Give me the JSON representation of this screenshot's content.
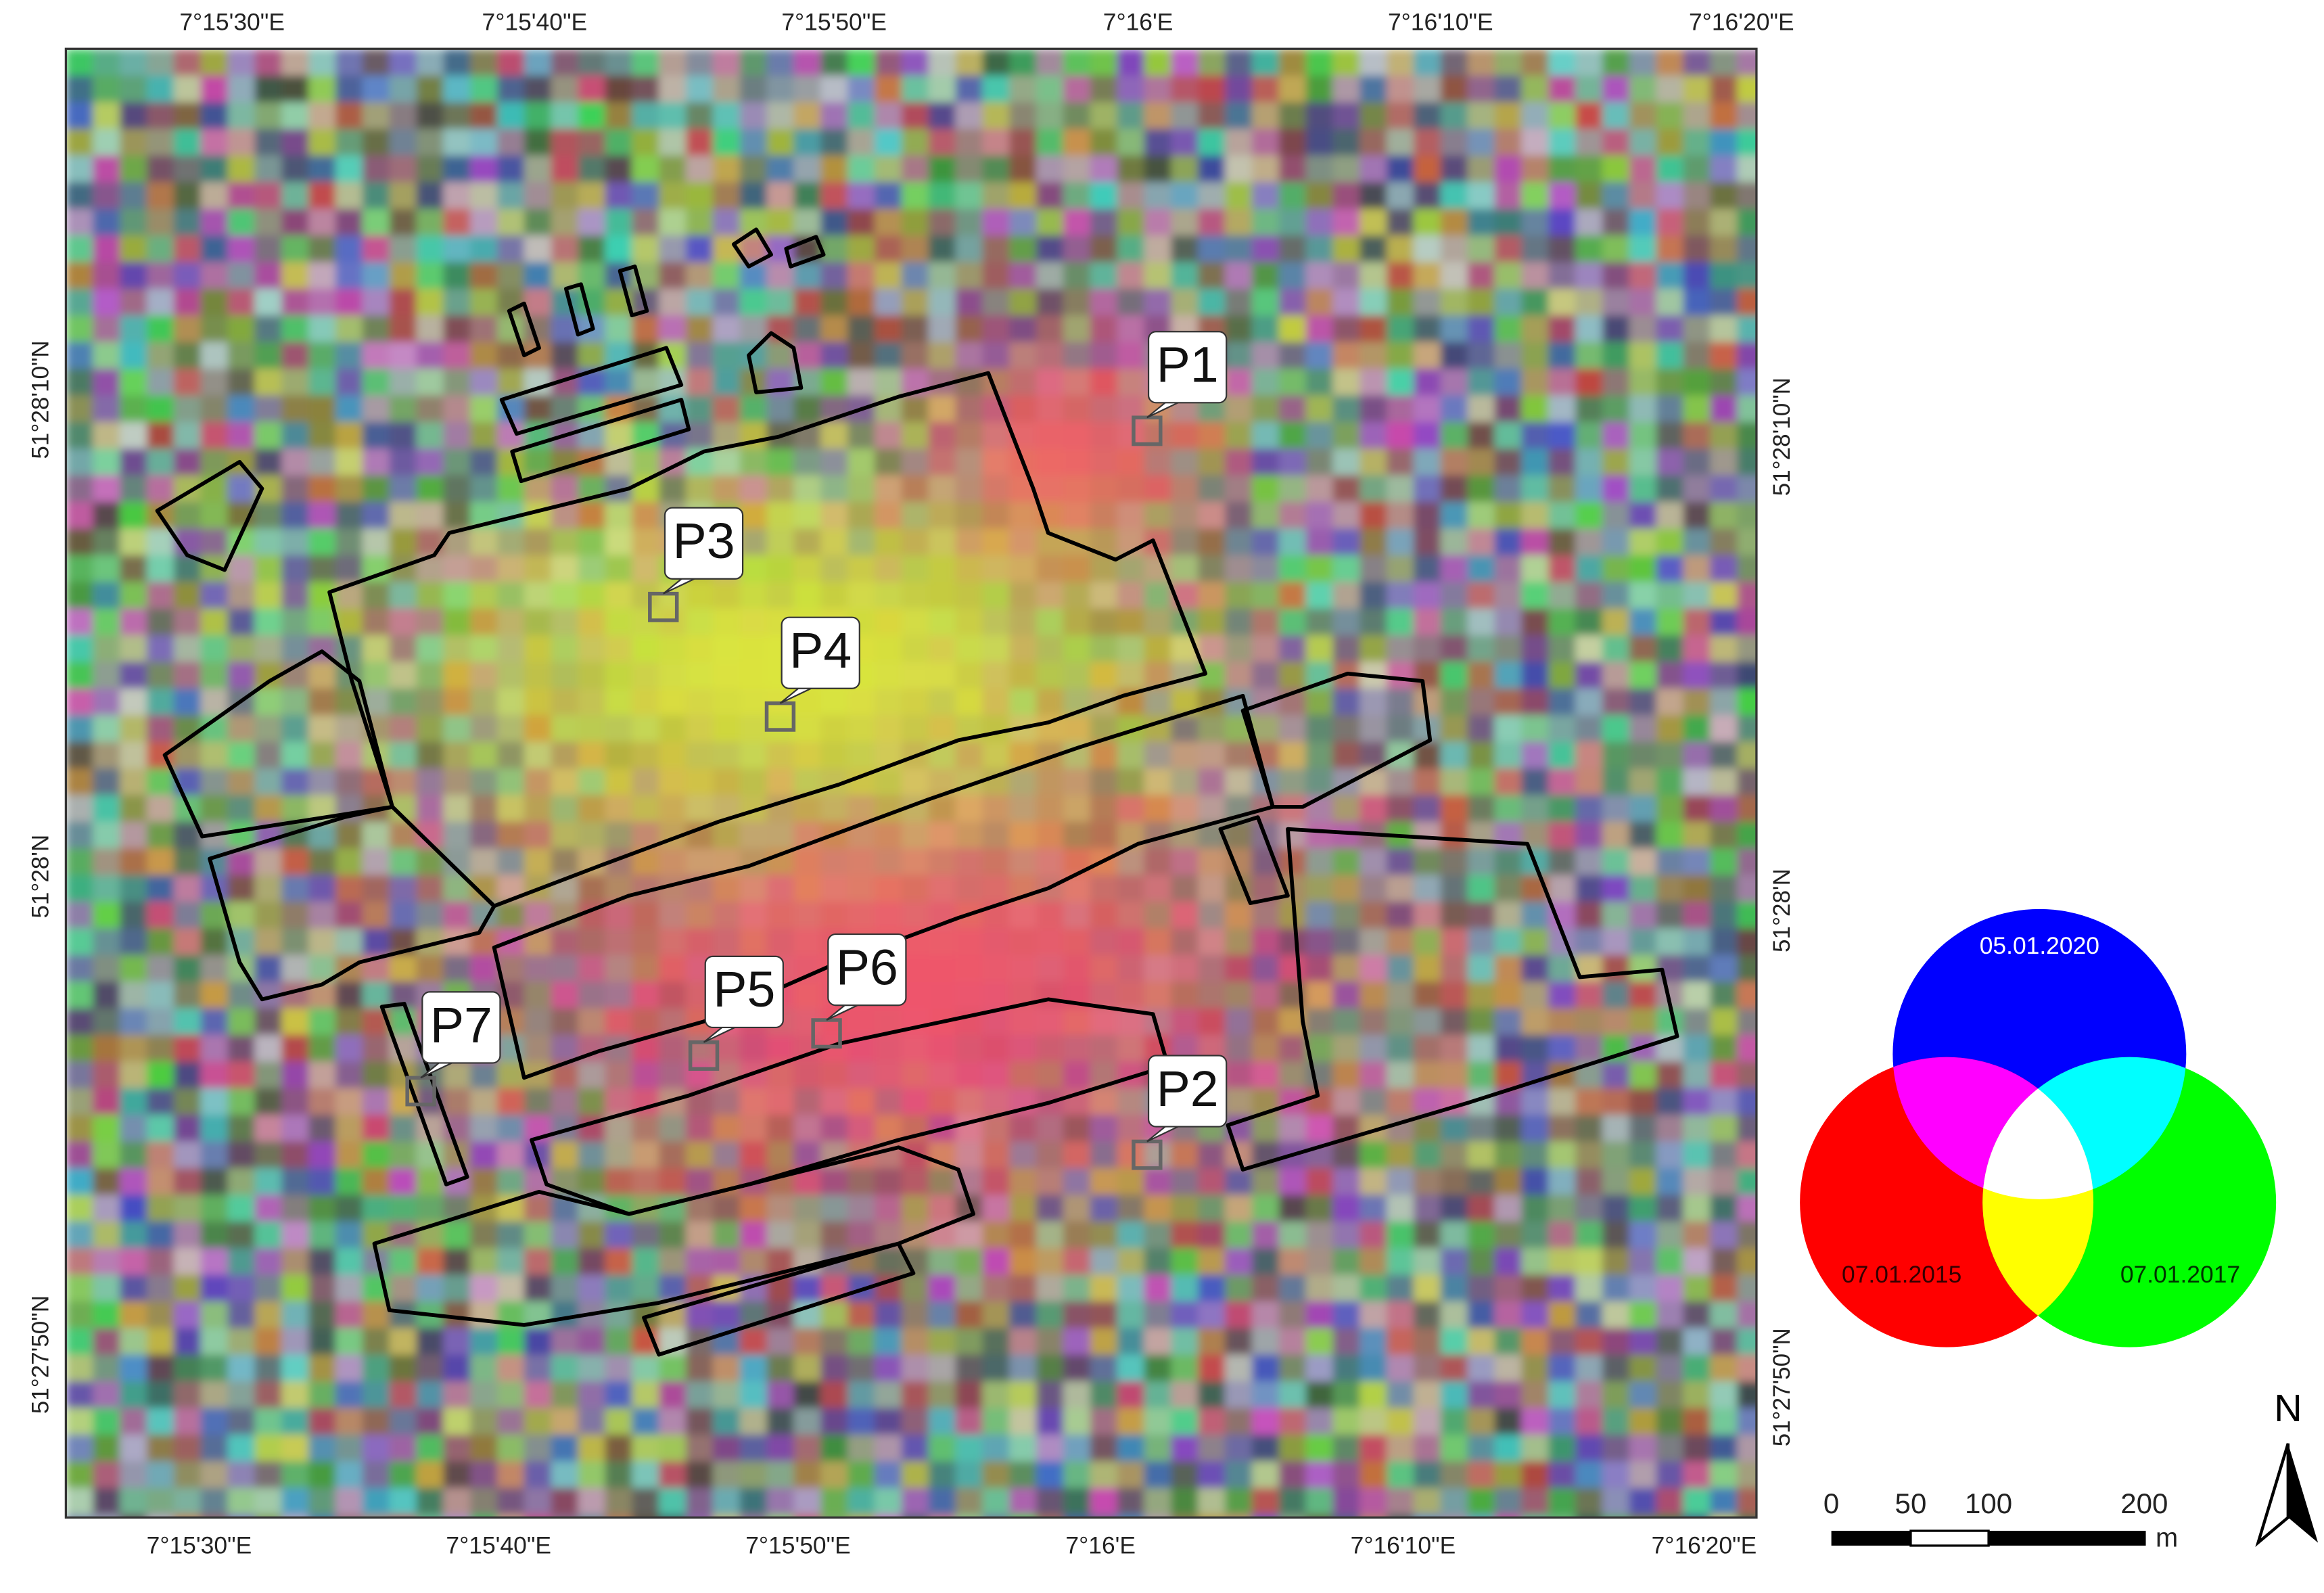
{
  "map": {
    "top_ticks": [
      "7°15'30\"E",
      "7°15'40\"E",
      "7°15'50\"E",
      "7°16'E",
      "7°16'10\"E",
      "7°16'20\"E"
    ],
    "bottom_ticks": [
      "7°15'30\"E",
      "7°15'40\"E",
      "7°15'50\"E",
      "7°16'E",
      "7°16'10\"E",
      "7°16'20\"E"
    ],
    "left_ticks": [
      "51°28'10\"N",
      "51°28'N",
      "51°27'50\"N"
    ],
    "right_ticks": [
      "51°28'10\"N",
      "51°28'N",
      "51°27'50\"N"
    ],
    "points": [
      "P1",
      "P2",
      "P3",
      "P4",
      "P5",
      "P6",
      "P7"
    ],
    "legend": {
      "blue": "05.01.2020",
      "red": "07.01.2015",
      "green": "07.01.2017"
    },
    "scale_bar": {
      "labels": [
        "0",
        "50",
        "100",
        "200"
      ],
      "unit": "m"
    },
    "north": "N"
  }
}
